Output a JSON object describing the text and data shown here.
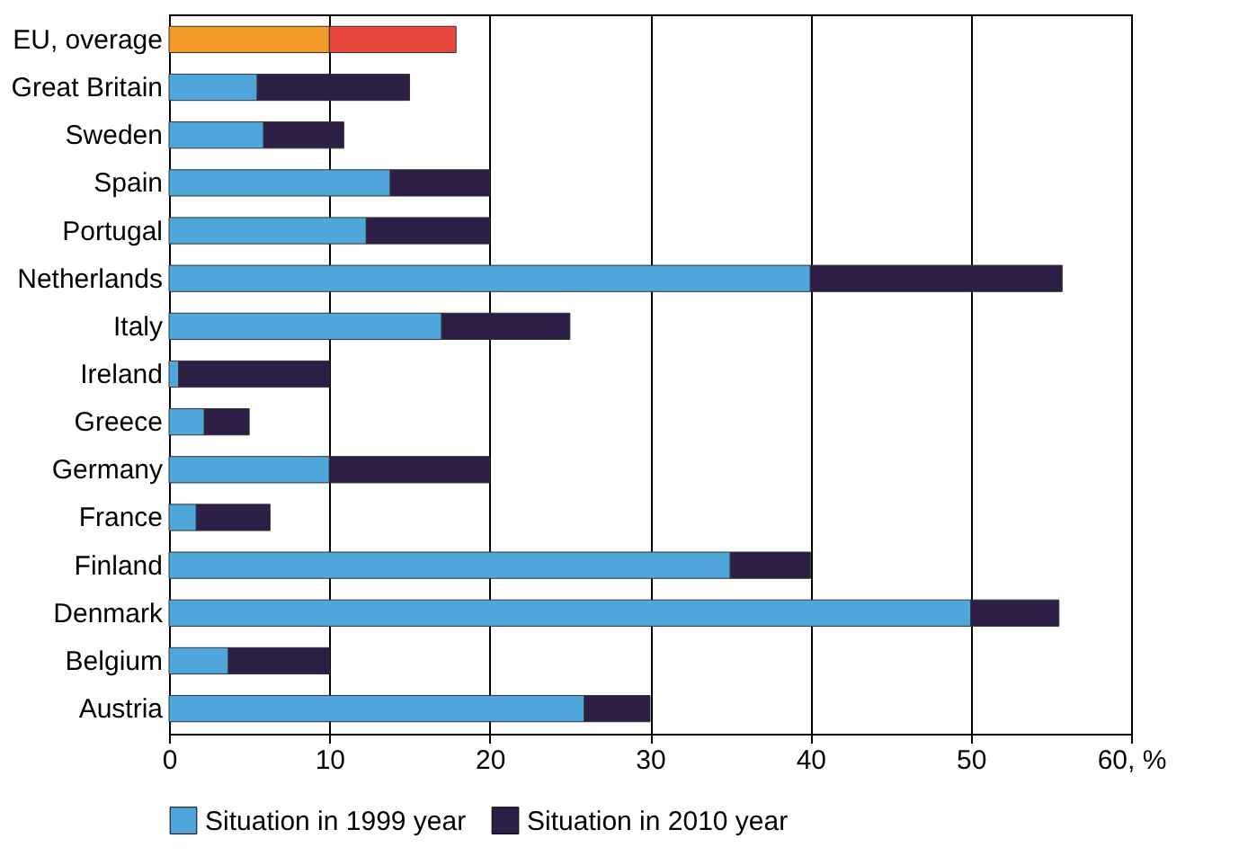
{
  "chart_data": {
    "type": "bar",
    "orientation": "horizontal",
    "stacked": true,
    "categories": [
      "EU, overage",
      "Great Britain",
      "Sweden",
      "Spain",
      "Portugal",
      "Netherlands",
      "Italy",
      "Ireland",
      "Greece",
      "Germany",
      "France",
      "Finland",
      "Denmark",
      "Belgium",
      "Austria"
    ],
    "series": [
      {
        "name": "Situation in 1999 year",
        "color": "#4ea6da",
        "colors": [
          "#f39a2c",
          "#4ea6da",
          "#4ea6da",
          "#4ea6da",
          "#4ea6da",
          "#4ea6da",
          "#4ea6da",
          "#4ea6da",
          "#4ea6da",
          "#4ea6da",
          "#4ea6da",
          "#4ea6da",
          "#4ea6da",
          "#4ea6da",
          "#4ea6da"
        ],
        "values": [
          10,
          5.5,
          5.9,
          13.8,
          12.3,
          40,
          17,
          0.6,
          2.2,
          10,
          1.7,
          35,
          50,
          3.7,
          25.9
        ]
      },
      {
        "name": "Situation in 2010 year",
        "color": "#2c1e45",
        "colors": [
          "#e8483e",
          "#2c1e45",
          "#2c1e45",
          "#2c1e45",
          "#2c1e45",
          "#2c1e45",
          "#2c1e45",
          "#2c1e45",
          "#2c1e45",
          "#2c1e45",
          "#2c1e45",
          "#2c1e45",
          "#2c1e45",
          "#2c1e45",
          "#2c1e45"
        ],
        "values": [
          7.9,
          9.5,
          5,
          6.2,
          7.7,
          15.7,
          8,
          9.4,
          2.8,
          10,
          4.6,
          5,
          5.5,
          6.3,
          4.1
        ]
      }
    ],
    "xlim": [
      0,
      60
    ],
    "xticks": [
      0,
      10,
      20,
      30,
      40,
      50,
      {
        "value": 60,
        "label": "60, %"
      }
    ],
    "grid": "x",
    "legend": "bottom"
  }
}
